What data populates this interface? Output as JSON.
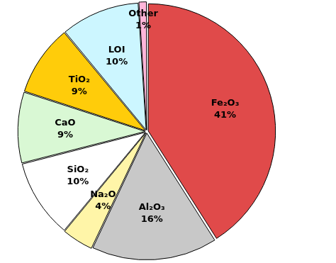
{
  "chart_data": {
    "type": "pie",
    "categories": [
      "Fe₂O₃",
      "Al₂O₃",
      "Na₂O",
      "SiO₂",
      "CaO",
      "TiO₂",
      "LOI",
      "Other"
    ],
    "values": [
      41,
      16,
      4,
      10,
      9,
      9,
      10,
      1
    ],
    "value_labels": [
      "41%",
      "16%",
      "4%",
      "10%",
      "9%",
      "9%",
      "10%",
      "1%"
    ],
    "colors": [
      "#e04a4a",
      "#c8c8c8",
      "#fff5a8",
      "#ffffff",
      "#d9f8d4",
      "#ffcc0a",
      "#ccf6ff",
      "#ffb6d9"
    ],
    "data_labels": true
  }
}
